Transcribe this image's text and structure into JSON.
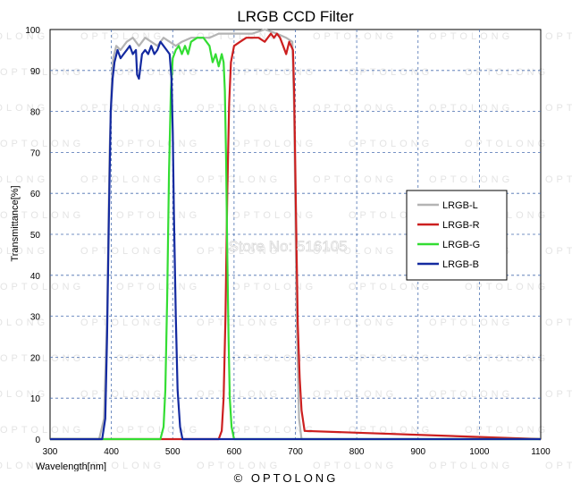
{
  "chart_data": {
    "type": "line",
    "title": "LRGB CCD Filter",
    "xlabel": "Wavelength[nm]",
    "ylabel": "Transmittance[%]",
    "xlim": [
      300,
      1100
    ],
    "ylim": [
      0,
      100
    ],
    "xticks": [
      300,
      400,
      500,
      600,
      700,
      800,
      900,
      1000,
      1100
    ],
    "yticks": [
      0,
      10,
      20,
      30,
      40,
      50,
      60,
      70,
      80,
      90,
      100
    ],
    "grid": true,
    "legend_position": "right",
    "series": [
      {
        "name": "LRGB-L",
        "color": "#b4b4b4",
        "x": [
          300,
          380,
          388,
          393,
          397,
          400,
          403,
          408,
          415,
          425,
          435,
          445,
          455,
          465,
          475,
          485,
          495,
          505,
          515,
          530,
          545,
          560,
          575,
          590,
          610,
          630,
          650,
          670,
          685,
          695,
          698,
          702,
          706,
          710,
          1100
        ],
        "y": [
          0,
          0,
          5,
          30,
          70,
          85,
          93,
          96,
          95,
          97,
          98,
          96,
          98,
          97,
          96,
          98,
          97,
          96,
          97,
          98,
          98,
          98,
          99,
          99,
          99,
          99,
          100,
          99,
          98,
          97,
          80,
          30,
          5,
          0,
          0
        ]
      },
      {
        "name": "LRGB-R",
        "color": "#cc1f1f",
        "x": [
          300,
          575,
          580,
          583,
          586,
          589,
          592,
          595,
          600,
          610,
          620,
          630,
          640,
          650,
          660,
          665,
          670,
          675,
          680,
          685,
          690,
          693,
          696,
          698,
          700,
          702,
          704,
          707,
          710,
          715,
          1100
        ],
        "y": [
          0,
          0,
          2,
          10,
          30,
          60,
          82,
          92,
          96,
          97,
          98,
          98,
          98,
          97,
          99,
          98,
          99,
          98,
          96,
          94,
          97,
          96,
          95,
          85,
          65,
          45,
          28,
          15,
          7,
          2,
          0
        ]
      },
      {
        "name": "LRGB-G",
        "color": "#33dd33",
        "x": [
          300,
          480,
          485,
          488,
          491,
          494,
          497,
          500,
          505,
          510,
          515,
          520,
          525,
          530,
          540,
          550,
          560,
          565,
          570,
          575,
          580,
          583,
          585,
          587,
          589,
          591,
          593,
          596,
          600,
          1100
        ],
        "y": [
          0,
          0,
          3,
          12,
          35,
          65,
          85,
          93,
          95,
          96,
          94,
          96,
          94,
          97,
          98,
          98,
          96,
          92,
          94,
          91,
          94,
          92,
          85,
          68,
          45,
          25,
          10,
          3,
          0,
          0
        ]
      },
      {
        "name": "LRGB-B",
        "color": "#142aa0",
        "x": [
          300,
          385,
          390,
          393,
          396,
          399,
          402,
          405,
          410,
          415,
          420,
          425,
          430,
          435,
          440,
          442,
          445,
          450,
          455,
          460,
          465,
          470,
          475,
          480,
          485,
          490,
          495,
          498,
          500,
          502,
          505,
          508,
          512,
          516,
          1100
        ],
        "y": [
          0,
          0,
          5,
          25,
          55,
          80,
          88,
          92,
          95,
          93,
          94,
          95,
          96,
          94,
          95,
          89,
          88,
          94,
          95,
          94,
          96,
          94,
          95,
          97,
          96,
          95,
          94,
          88,
          75,
          55,
          30,
          12,
          3,
          0,
          0
        ]
      }
    ]
  },
  "watermark": {
    "text": "OPTOLONG",
    "store": "Store No: 516105"
  },
  "footer": {
    "copyright": "© OPTOLONG"
  }
}
